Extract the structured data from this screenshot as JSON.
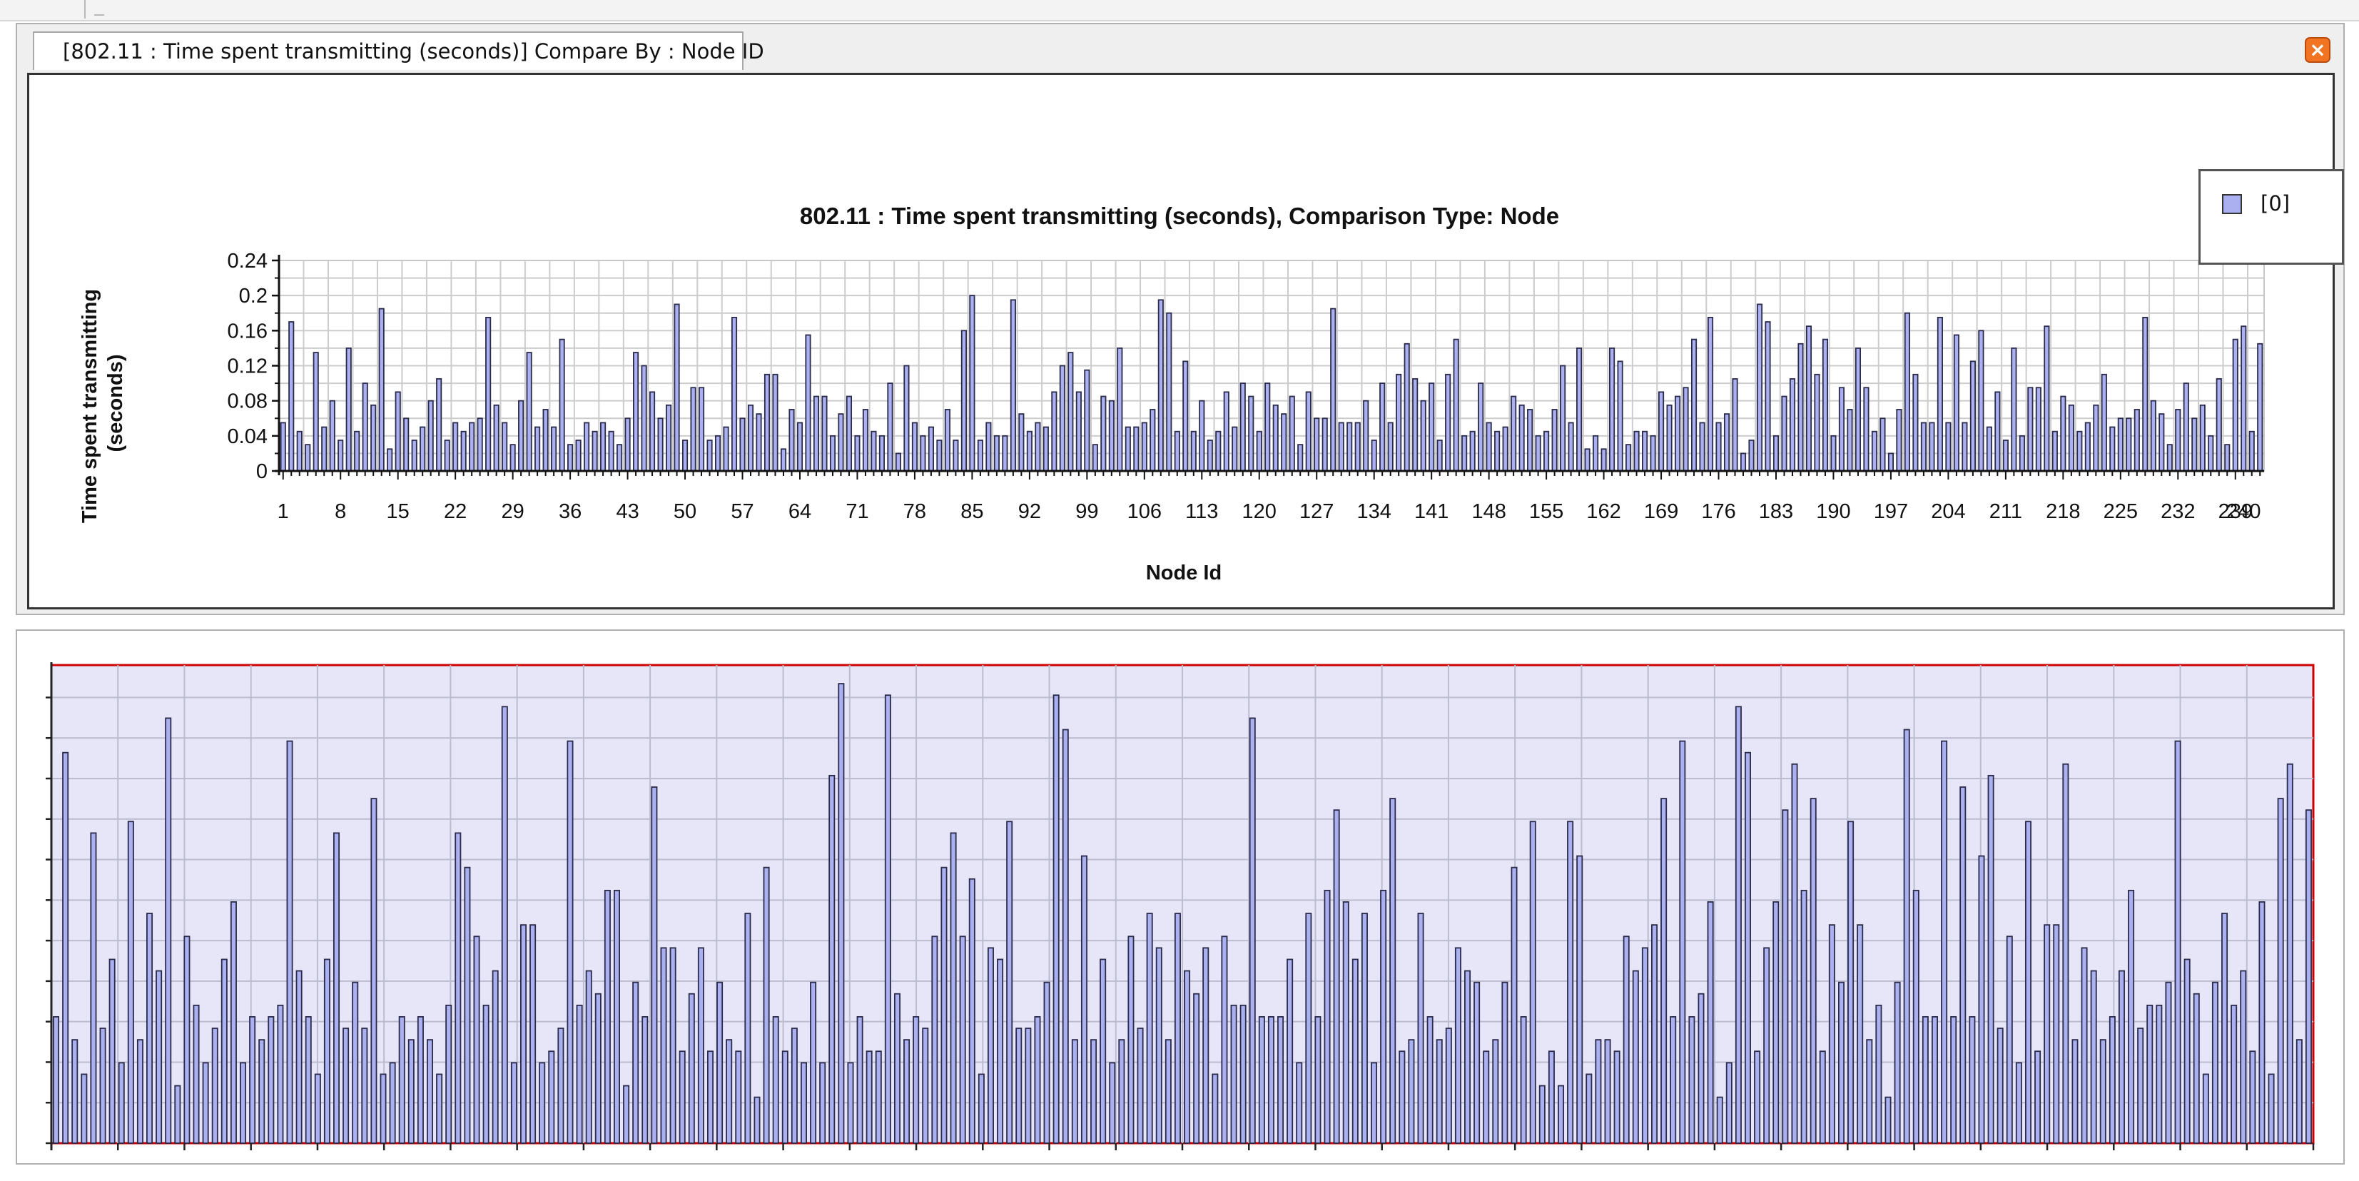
{
  "window": {
    "tab_title": "[802.11 :  Time spent transmitting (seconds)] Compare By : Node ID",
    "close_glyph": "×"
  },
  "colors": {
    "bar_fill": "#aab0f0",
    "bar_stroke": "#2a2a4a",
    "plot_bg2": "#e6e6f8",
    "plot_border2": "#cc0000"
  },
  "legend": {
    "entries": [
      "[0]"
    ]
  },
  "chart_data": {
    "type": "bar",
    "title": "802.11 :  Time spent transmitting (seconds), Comparison Type: Node",
    "xlabel": "Node Id",
    "ylabel": "Time spent transmitting (seconds)",
    "ylim": [
      0,
      0.24
    ],
    "yticks": [
      "0",
      "0.04",
      "0.08",
      "0.12",
      "0.16",
      "0.2",
      "0.24"
    ],
    "xticks": [
      "1",
      "8",
      "15",
      "22",
      "29",
      "36",
      "43",
      "50",
      "57",
      "64",
      "71",
      "78",
      "85",
      "92",
      "99",
      "106",
      "113",
      "120",
      "127",
      "134",
      "141",
      "148",
      "155",
      "162",
      "169",
      "176",
      "183",
      "190",
      "197",
      "204",
      "211",
      "218",
      "225",
      "232",
      "239",
      "240"
    ],
    "grid": true,
    "legend_position": "top-right",
    "series": [
      {
        "name": "[0]",
        "x_start": 1,
        "values": [
          0.055,
          0.17,
          0.045,
          0.03,
          0.135,
          0.05,
          0.08,
          0.035,
          0.14,
          0.045,
          0.1,
          0.075,
          0.185,
          0.025,
          0.09,
          0.06,
          0.035,
          0.05,
          0.08,
          0.105,
          0.035,
          0.055,
          0.045,
          0.055,
          0.06,
          0.175,
          0.075,
          0.055,
          0.03,
          0.08,
          0.135,
          0.05,
          0.07,
          0.05,
          0.15,
          0.03,
          0.035,
          0.055,
          0.045,
          0.055,
          0.045,
          0.03,
          0.06,
          0.135,
          0.12,
          0.09,
          0.06,
          0.075,
          0.19,
          0.035,
          0.095,
          0.095,
          0.035,
          0.04,
          0.05,
          0.175,
          0.06,
          0.075,
          0.065,
          0.11,
          0.11,
          0.025,
          0.07,
          0.055,
          0.155,
          0.085,
          0.085,
          0.04,
          0.065,
          0.085,
          0.04,
          0.07,
          0.045,
          0.04,
          0.1,
          0.02,
          0.12,
          0.055,
          0.04,
          0.05,
          0.035,
          0.07,
          0.035,
          0.16,
          0.2,
          0.035,
          0.055,
          0.04,
          0.04,
          0.195,
          0.065,
          0.045,
          0.055,
          0.05,
          0.09,
          0.12,
          0.135,
          0.09,
          0.115,
          0.03,
          0.085,
          0.08,
          0.14,
          0.05,
          0.05,
          0.055,
          0.07,
          0.195,
          0.18,
          0.045,
          0.125,
          0.045,
          0.08,
          0.035,
          0.045,
          0.09,
          0.05,
          0.1,
          0.085,
          0.045,
          0.1,
          0.075,
          0.065,
          0.085,
          0.03,
          0.09,
          0.06,
          0.06,
          0.185,
          0.055,
          0.055,
          0.055,
          0.08,
          0.035,
          0.1,
          0.055,
          0.11,
          0.145,
          0.105,
          0.08,
          0.1,
          0.035,
          0.11,
          0.15,
          0.04,
          0.045,
          0.1,
          0.055,
          0.045,
          0.05,
          0.085,
          0.075,
          0.07,
          0.04,
          0.045,
          0.07,
          0.12,
          0.055,
          0.14,
          0.025,
          0.04,
          0.025,
          0.14,
          0.125,
          0.03,
          0.045,
          0.045,
          0.04,
          0.09,
          0.075,
          0.085,
          0.095,
          0.15,
          0.055,
          0.175,
          0.055,
          0.065,
          0.105,
          0.02,
          0.035,
          0.19,
          0.17,
          0.04,
          0.085,
          0.105,
          0.145,
          0.165,
          0.11,
          0.15,
          0.04,
          0.095,
          0.07,
          0.14,
          0.095,
          0.045,
          0.06,
          0.02,
          0.07,
          0.18,
          0.11,
          0.055,
          0.055,
          0.175,
          0.055,
          0.155,
          0.055,
          0.125,
          0.16,
          0.05,
          0.09,
          0.035,
          0.14,
          0.04,
          0.095,
          0.095,
          0.165,
          0.045,
          0.085,
          0.075,
          0.045,
          0.055,
          0.075,
          0.11,
          0.05,
          0.06,
          0.06,
          0.07,
          0.175,
          0.08,
          0.065,
          0.03,
          0.07,
          0.1,
          0.06,
          0.075,
          0.04,
          0.105,
          0.03,
          0.15,
          0.165,
          0.045,
          0.145
        ]
      }
    ]
  }
}
